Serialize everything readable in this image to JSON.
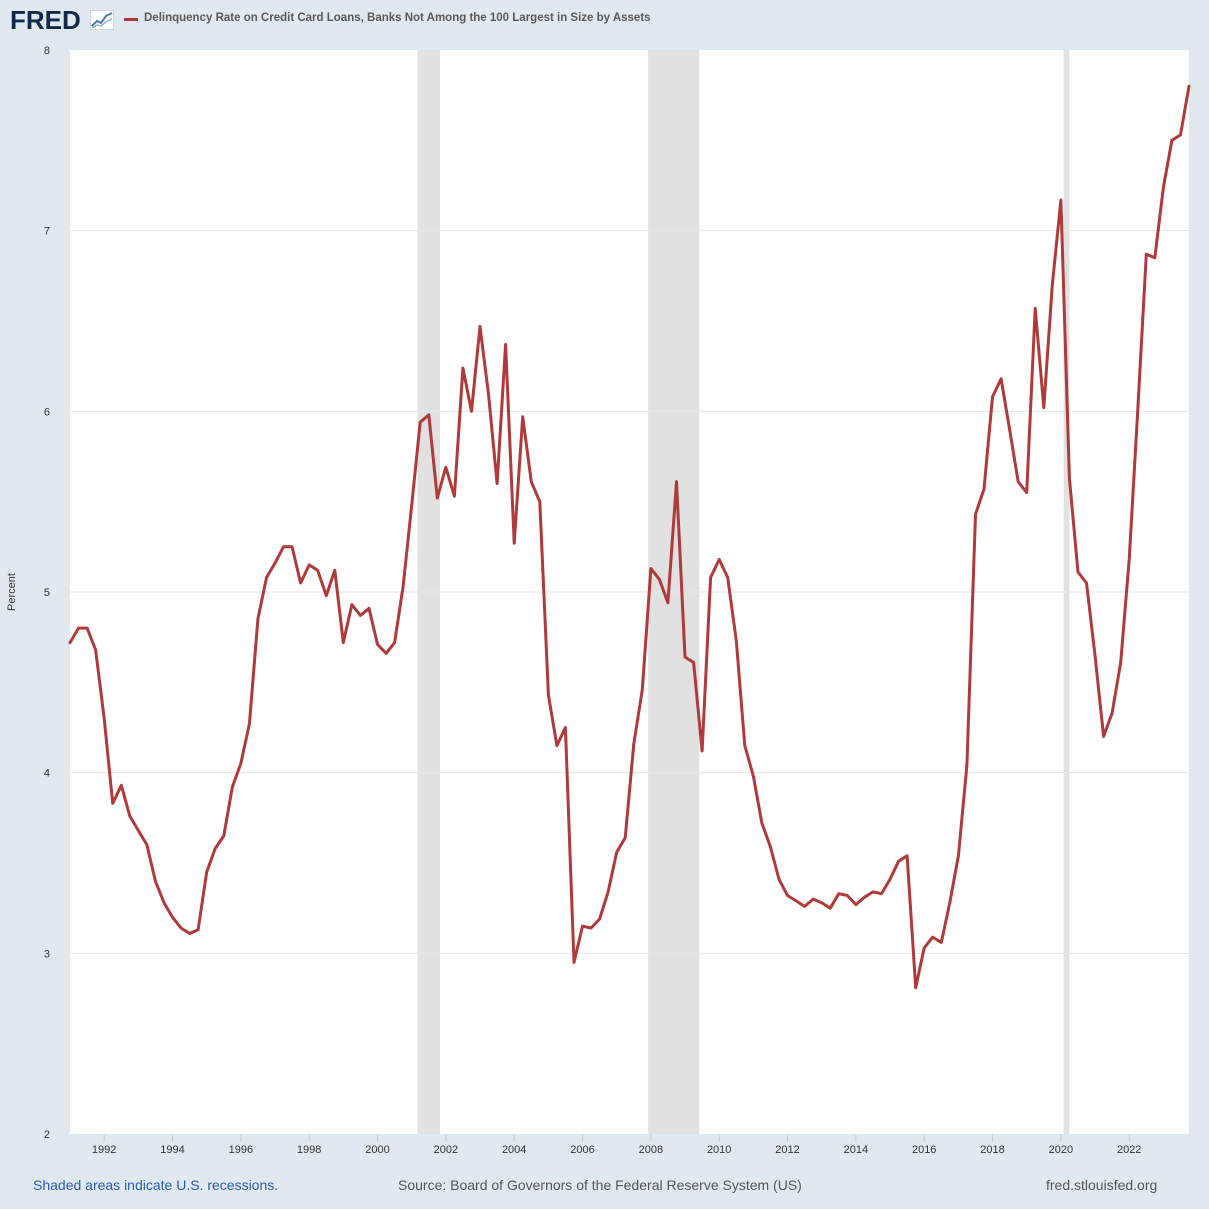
{
  "header": {
    "logo_text": "FRED",
    "legend_label": "Delinquency Rate on Credit Card Loans, Banks Not Among the 100 Largest in Size by Assets"
  },
  "colors": {
    "series": "#b03a3a",
    "recession": "#e1e1e1",
    "grid": "#e6e6e6",
    "background": "#e1e9f0",
    "plot_background": "#ffffff"
  },
  "footer": {
    "left": "Shaded areas indicate U.S. recessions.",
    "center": "Source: Board of Governors of the Federal Reserve System (US)",
    "right": "fred.stlouisfed.org"
  },
  "chart_data": {
    "type": "line",
    "title": "Delinquency Rate on Credit Card Loans, Banks Not Among the 100 Largest in Size by Assets",
    "xlabel": "",
    "ylabel": "Percent",
    "xlim": [
      1991.0,
      2023.75
    ],
    "ylim": [
      2,
      8
    ],
    "yticks": [
      2,
      3,
      4,
      5,
      6,
      7,
      8
    ],
    "xticks": [
      1992,
      1994,
      1996,
      1998,
      2000,
      2002,
      2004,
      2006,
      2008,
      2010,
      2012,
      2014,
      2016,
      2018,
      2020,
      2022
    ],
    "grid": true,
    "legend": "top-left",
    "recessions": [
      [
        2001.17,
        2001.83
      ],
      [
        2007.92,
        2009.42
      ],
      [
        2020.08,
        2020.25
      ]
    ],
    "series": [
      {
        "name": "Delinquency Rate on Credit Card Loans, Banks Not Among the 100 Largest in Size by Assets",
        "x_start": 1991.0,
        "x_step": 0.25,
        "values": [
          4.72,
          4.8,
          4.8,
          4.68,
          4.3,
          3.83,
          3.93,
          3.76,
          3.68,
          3.6,
          3.4,
          3.28,
          3.2,
          3.14,
          3.11,
          3.13,
          3.45,
          3.58,
          3.65,
          3.92,
          4.05,
          4.27,
          4.85,
          5.08,
          5.16,
          5.25,
          5.25,
          5.05,
          5.15,
          5.12,
          4.98,
          5.12,
          4.72,
          4.93,
          4.87,
          4.91,
          4.71,
          4.66,
          4.72,
          5.03,
          5.48,
          5.94,
          5.98,
          5.52,
          5.69,
          5.53,
          6.24,
          6.0,
          6.47,
          6.09,
          5.6,
          6.37,
          5.27,
          5.97,
          5.61,
          5.5,
          4.43,
          4.15,
          4.25,
          2.95,
          3.15,
          3.14,
          3.19,
          3.34,
          3.56,
          3.64,
          4.16,
          4.46,
          5.13,
          5.07,
          4.94,
          5.61,
          4.64,
          4.61,
          4.12,
          5.08,
          5.18,
          5.08,
          4.73,
          4.15,
          3.98,
          3.72,
          3.59,
          3.41,
          3.32,
          3.29,
          3.26,
          3.3,
          3.28,
          3.25,
          3.33,
          3.32,
          3.27,
          3.31,
          3.34,
          3.33,
          3.41,
          3.51,
          3.54,
          2.81,
          3.03,
          3.09,
          3.06,
          3.28,
          3.54,
          4.04,
          5.43,
          5.57,
          6.08,
          6.18,
          5.9,
          5.61,
          5.55,
          6.57,
          6.02,
          6.7,
          7.17,
          5.63,
          5.11,
          5.05,
          4.65,
          4.2,
          4.33,
          4.61,
          5.18,
          6.0,
          6.87,
          6.85,
          7.24,
          7.5,
          7.53,
          7.8
        ]
      }
    ]
  }
}
